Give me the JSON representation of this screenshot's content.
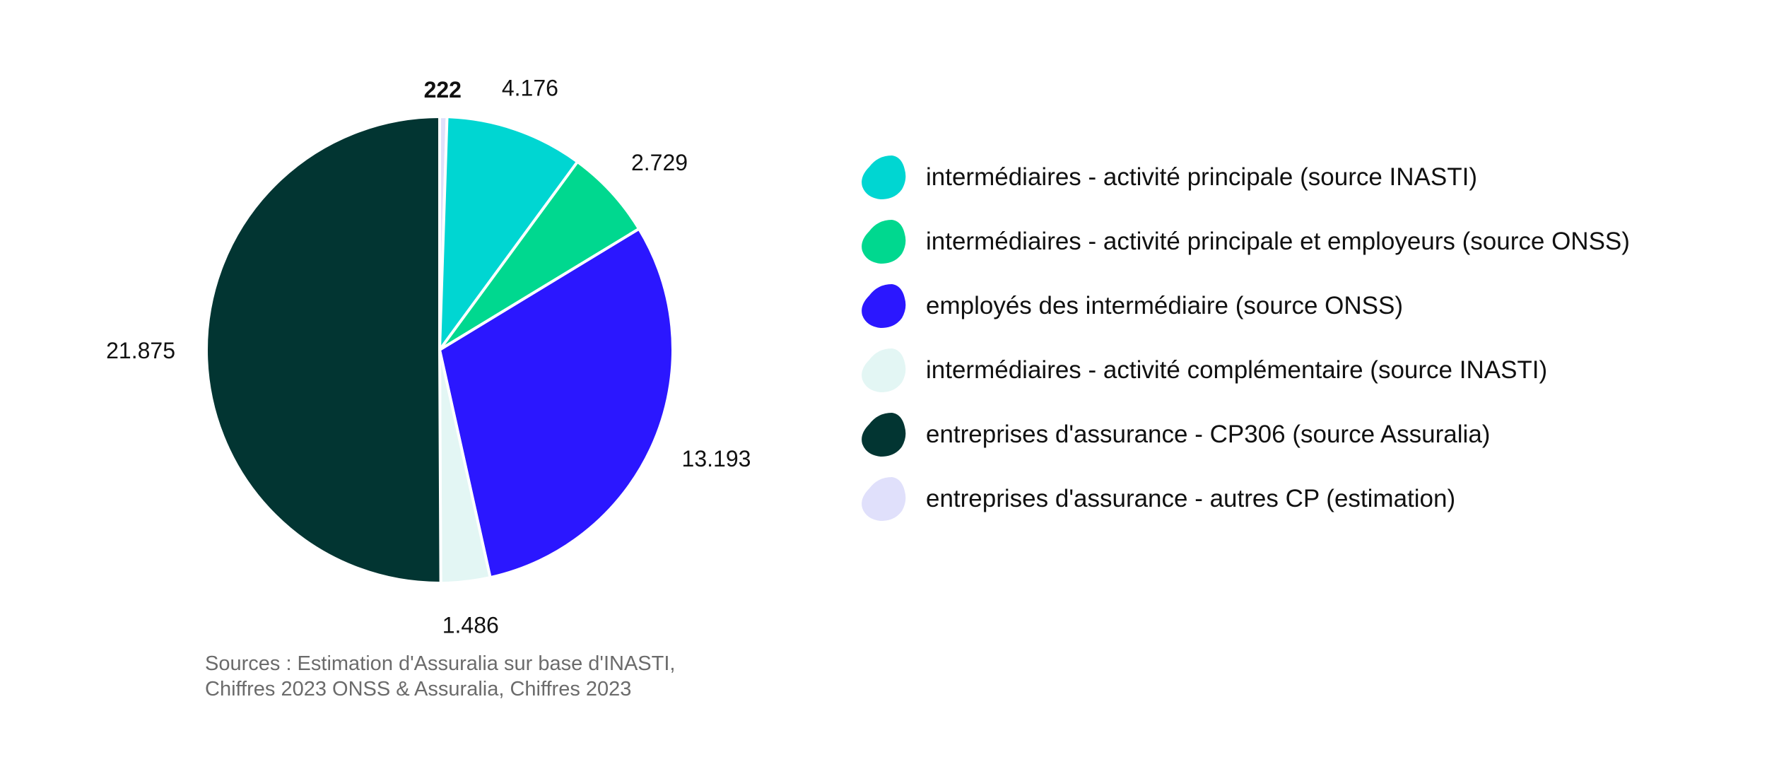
{
  "chart_data": {
    "type": "pie",
    "title": "",
    "categories": [
      "entreprises d'assurance - autres CP (estimation)",
      "intermédiaires - activité principale (source INASTI)",
      "intermédiaires - activité principale et employeurs (source ONSS)",
      "employés des intermédiaire (source ONSS)",
      "intermédiaires - activité complémentaire (source INASTI)",
      "entreprises d'assurance - CP306 (source Assuralia)"
    ],
    "values": [
      222,
      4176,
      2729,
      13193,
      1486,
      21875
    ],
    "value_labels": [
      "222",
      "4.176",
      "2.729",
      "13.193",
      "1.486",
      "21.875"
    ],
    "colors": [
      "#e0e0fb",
      "#00d6d2",
      "#00d88f",
      "#2b17ff",
      "#e3f6f4",
      "#023532"
    ],
    "start_angle_deg": 0,
    "direction": "clockwise",
    "legend": {
      "placement": "right",
      "items": [
        {
          "label": "intermédiaires - activité principale (source INASTI)",
          "color": "#00d6d2"
        },
        {
          "label": "intermédiaires - activité principale et employeurs (source ONSS)",
          "color": "#00d88f"
        },
        {
          "label": "employés des intermédiaire (source ONSS)",
          "color": "#2b17ff"
        },
        {
          "label": "intermédiaires - activité complémentaire (source INASTI)",
          "color": "#e3f6f4"
        },
        {
          "label": "entreprises d'assurance - CP306 (source Assuralia)",
          "color": "#023532"
        },
        {
          "label": "entreprises d'assurance - autres CP (estimation)",
          "color": "#e0e0fb"
        }
      ]
    },
    "source_note": [
      "Sources : Estimation d'Assuralia sur base d'INASTI,",
      "Chiffres 2023 ONSS & Assuralia, Chiffres 2023"
    ]
  }
}
